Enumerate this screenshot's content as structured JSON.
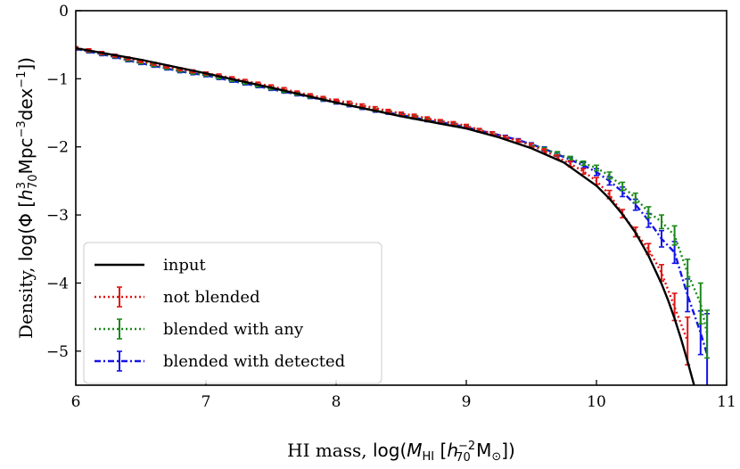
{
  "chart_data": {
    "type": "line",
    "title": "",
    "xlabel": "HI mass, log(M_HI [h70^-2 M_sun])",
    "ylabel": "Density, log(Φ [h70^3 Mpc^-3 dex^-1])",
    "xlim": [
      6,
      11
    ],
    "ylim": [
      -5.5,
      0
    ],
    "x_ticks": [
      6,
      7,
      8,
      9,
      10,
      11
    ],
    "y_ticks": [
      0,
      -1,
      -2,
      -3,
      -4,
      -5
    ],
    "x_tick_labels": [
      "6",
      "7",
      "8",
      "9",
      "10",
      "11"
    ],
    "y_tick_labels": [
      "0",
      "−1",
      "−2",
      "−3",
      "−4",
      "−5"
    ],
    "legend_position": "bottom-left",
    "series": [
      {
        "name": "input",
        "style": "solid",
        "color": "#000000",
        "errorbars": false,
        "x": [
          6.0,
          6.5,
          7.0,
          7.5,
          8.0,
          8.5,
          9.0,
          9.25,
          9.5,
          9.75,
          10.0,
          10.1,
          10.2,
          10.3,
          10.4,
          10.5,
          10.55,
          10.6,
          10.65,
          10.7,
          10.75
        ],
        "y": [
          -0.55,
          -0.72,
          -0.92,
          -1.13,
          -1.35,
          -1.55,
          -1.73,
          -1.86,
          -2.02,
          -2.23,
          -2.57,
          -2.76,
          -2.99,
          -3.26,
          -3.6,
          -4.01,
          -4.25,
          -4.52,
          -4.82,
          -5.15,
          -5.5
        ]
      },
      {
        "name": "not blended",
        "style": "dotted",
        "color": "#e11414",
        "errorbars": true,
        "x": [
          6.0,
          6.1,
          6.2,
          6.3,
          6.4,
          6.5,
          6.6,
          6.7,
          6.8,
          6.9,
          7.0,
          7.1,
          7.2,
          7.3,
          7.4,
          7.5,
          7.6,
          7.7,
          7.8,
          7.9,
          8.0,
          8.1,
          8.2,
          8.3,
          8.4,
          8.5,
          8.6,
          8.7,
          8.8,
          8.9,
          9.0,
          9.1,
          9.2,
          9.3,
          9.4,
          9.5,
          9.6,
          9.7,
          9.8,
          9.9,
          10.0,
          10.1,
          10.2,
          10.3,
          10.4,
          10.5,
          10.6,
          10.7
        ],
        "y": [
          -0.55,
          -0.58,
          -0.62,
          -0.66,
          -0.7,
          -0.74,
          -0.78,
          -0.82,
          -0.86,
          -0.89,
          -0.92,
          -0.95,
          -0.99,
          -1.03,
          -1.07,
          -1.11,
          -1.15,
          -1.2,
          -1.24,
          -1.28,
          -1.32,
          -1.35,
          -1.39,
          -1.43,
          -1.47,
          -1.51,
          -1.54,
          -1.58,
          -1.62,
          -1.65,
          -1.69,
          -1.75,
          -1.8,
          -1.86,
          -1.91,
          -1.98,
          -2.06,
          -2.15,
          -2.25,
          -2.36,
          -2.5,
          -2.7,
          -2.98,
          -3.25,
          -3.5,
          -3.85,
          -4.35,
          -4.85
        ],
        "err": [
          0.02,
          0.02,
          0.02,
          0.02,
          0.02,
          0.02,
          0.02,
          0.02,
          0.02,
          0.02,
          0.02,
          0.02,
          0.02,
          0.02,
          0.02,
          0.02,
          0.02,
          0.02,
          0.02,
          0.02,
          0.02,
          0.02,
          0.02,
          0.02,
          0.02,
          0.02,
          0.02,
          0.02,
          0.02,
          0.02,
          0.02,
          0.02,
          0.02,
          0.02,
          0.02,
          0.03,
          0.03,
          0.03,
          0.04,
          0.04,
          0.05,
          0.06,
          0.06,
          0.07,
          0.08,
          0.12,
          0.2,
          0.35
        ]
      },
      {
        "name": "blended with any",
        "style": "dotted",
        "color": "#1a8a1a",
        "errorbars": true,
        "x": [
          6.0,
          6.1,
          6.2,
          6.3,
          6.4,
          6.5,
          6.6,
          6.7,
          6.8,
          6.9,
          7.0,
          7.1,
          7.2,
          7.3,
          7.4,
          7.5,
          7.6,
          7.7,
          7.8,
          7.9,
          8.0,
          8.1,
          8.2,
          8.3,
          8.4,
          8.5,
          8.6,
          8.7,
          8.8,
          8.9,
          9.0,
          9.1,
          9.2,
          9.3,
          9.4,
          9.5,
          9.6,
          9.7,
          9.8,
          9.9,
          10.0,
          10.1,
          10.2,
          10.3,
          10.4,
          10.5,
          10.6,
          10.7,
          10.8,
          10.85
        ],
        "y": [
          -0.55,
          -0.59,
          -0.63,
          -0.67,
          -0.72,
          -0.76,
          -0.8,
          -0.84,
          -0.88,
          -0.91,
          -0.94,
          -0.98,
          -1.02,
          -1.06,
          -1.1,
          -1.14,
          -1.18,
          -1.22,
          -1.26,
          -1.3,
          -1.34,
          -1.38,
          -1.42,
          -1.46,
          -1.49,
          -1.52,
          -1.56,
          -1.6,
          -1.63,
          -1.66,
          -1.7,
          -1.76,
          -1.81,
          -1.86,
          -1.91,
          -1.97,
          -2.03,
          -2.1,
          -2.17,
          -2.24,
          -2.31,
          -2.42,
          -2.58,
          -2.75,
          -2.96,
          -3.1,
          -3.3,
          -3.85,
          -4.3,
          -4.75
        ]
      },
      {
        "name": "blended with detected",
        "style": "dashdot",
        "color": "#1414e6",
        "errorbars": true,
        "x": [
          6.0,
          6.1,
          6.2,
          6.3,
          6.4,
          6.5,
          6.6,
          6.7,
          6.8,
          6.9,
          7.0,
          7.1,
          7.2,
          7.3,
          7.4,
          7.5,
          7.6,
          7.7,
          7.8,
          7.9,
          8.0,
          8.1,
          8.2,
          8.3,
          8.4,
          8.5,
          8.6,
          8.7,
          8.8,
          8.9,
          9.0,
          9.1,
          9.2,
          9.3,
          9.4,
          9.5,
          9.6,
          9.7,
          9.8,
          9.9,
          10.0,
          10.1,
          10.2,
          10.3,
          10.4,
          10.5,
          10.6,
          10.7,
          10.8,
          10.85
        ],
        "y": [
          -0.56,
          -0.6,
          -0.64,
          -0.68,
          -0.73,
          -0.77,
          -0.81,
          -0.85,
          -0.89,
          -0.92,
          -0.95,
          -0.99,
          -1.03,
          -1.07,
          -1.11,
          -1.15,
          -1.19,
          -1.23,
          -1.27,
          -1.31,
          -1.35,
          -1.39,
          -1.43,
          -1.47,
          -1.5,
          -1.53,
          -1.57,
          -1.61,
          -1.64,
          -1.67,
          -1.71,
          -1.76,
          -1.8,
          -1.85,
          -1.9,
          -1.96,
          -2.03,
          -2.11,
          -2.19,
          -2.27,
          -2.37,
          -2.5,
          -2.66,
          -2.85,
          -3.08,
          -3.35,
          -3.55,
          -4.18,
          -4.73,
          -5.05
        ]
      }
    ]
  },
  "errors": {
    "green": [
      0.02,
      0.02,
      0.02,
      0.02,
      0.02,
      0.02,
      0.02,
      0.02,
      0.02,
      0.02,
      0.02,
      0.02,
      0.02,
      0.02,
      0.02,
      0.02,
      0.02,
      0.02,
      0.02,
      0.02,
      0.02,
      0.02,
      0.02,
      0.02,
      0.02,
      0.02,
      0.02,
      0.02,
      0.02,
      0.02,
      0.02,
      0.02,
      0.02,
      0.02,
      0.02,
      0.02,
      0.02,
      0.03,
      0.03,
      0.03,
      0.04,
      0.05,
      0.06,
      0.07,
      0.08,
      0.1,
      0.14,
      0.2,
      0.3,
      0.35
    ],
    "blue": [
      0.02,
      0.02,
      0.02,
      0.02,
      0.02,
      0.02,
      0.02,
      0.02,
      0.02,
      0.02,
      0.02,
      0.02,
      0.02,
      0.02,
      0.02,
      0.02,
      0.02,
      0.02,
      0.02,
      0.02,
      0.02,
      0.02,
      0.02,
      0.02,
      0.02,
      0.02,
      0.02,
      0.02,
      0.02,
      0.02,
      0.02,
      0.02,
      0.02,
      0.02,
      0.02,
      0.02,
      0.03,
      0.03,
      0.03,
      0.04,
      0.05,
      0.06,
      0.07,
      0.08,
      0.1,
      0.12,
      0.16,
      0.24,
      0.32,
      0.6
    ]
  },
  "axis_label_parts": {
    "x_prefix": "HI mass, ",
    "x_math_open": "log(",
    "x_M": "M",
    "x_sub_HI": "HI",
    "x_bracket_open": " [",
    "x_h": "h",
    "x_h_sup": "−2",
    "x_h_sub": "70",
    "x_Msun": " M",
    "x_sun_sub": "⊙",
    "x_close": "])",
    "y_prefix": "Density, ",
    "y_math_open": "log(Φ [",
    "y_h": "h",
    "y_h_sup": "3",
    "y_h_sub": "70",
    "y_mpc": "Mpc",
    "y_mpc_sup": "−3",
    "y_dex": "dex",
    "y_dex_sup": "−1",
    "y_close": "])"
  }
}
